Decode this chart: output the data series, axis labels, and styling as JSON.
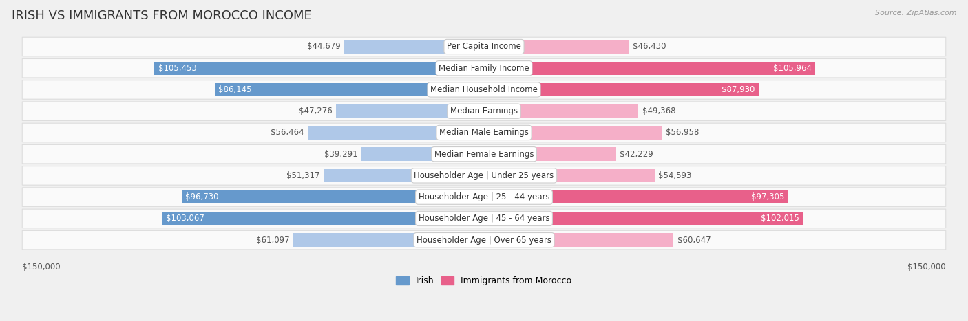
{
  "title": "IRISH VS IMMIGRANTS FROM MOROCCO INCOME",
  "source": "Source: ZipAtlas.com",
  "categories": [
    "Per Capita Income",
    "Median Family Income",
    "Median Household Income",
    "Median Earnings",
    "Median Male Earnings",
    "Median Female Earnings",
    "Householder Age | Under 25 years",
    "Householder Age | 25 - 44 years",
    "Householder Age | 45 - 64 years",
    "Householder Age | Over 65 years"
  ],
  "irish_values": [
    44679,
    105453,
    86145,
    47276,
    56464,
    39291,
    51317,
    96730,
    103067,
    61097
  ],
  "morocco_values": [
    46430,
    105964,
    87930,
    49368,
    56958,
    42229,
    54593,
    97305,
    102015,
    60647
  ],
  "irish_labels": [
    "$44,679",
    "$105,453",
    "$86,145",
    "$47,276",
    "$56,464",
    "$39,291",
    "$51,317",
    "$96,730",
    "$103,067",
    "$61,097"
  ],
  "morocco_labels": [
    "$46,430",
    "$105,964",
    "$87,930",
    "$49,368",
    "$56,958",
    "$42,229",
    "$54,593",
    "$97,305",
    "$102,015",
    "$60,647"
  ],
  "irish_color_light": "#afc8e8",
  "irish_color_dark": "#6699cc",
  "morocco_color_light": "#f5afc8",
  "morocco_color_dark": "#e8608a",
  "threshold": 75000,
  "max_value": 150000,
  "axis_label_left": "$150,000",
  "axis_label_right": "$150,000",
  "irish_legend": "Irish",
  "morocco_legend": "Immigrants from Morocco",
  "bg_color": "#f0f0f0",
  "row_bg_color": "#fafafa",
  "row_border_color": "#dddddd",
  "title_fontsize": 13,
  "label_fontsize": 8.5,
  "category_fontsize": 8.5
}
